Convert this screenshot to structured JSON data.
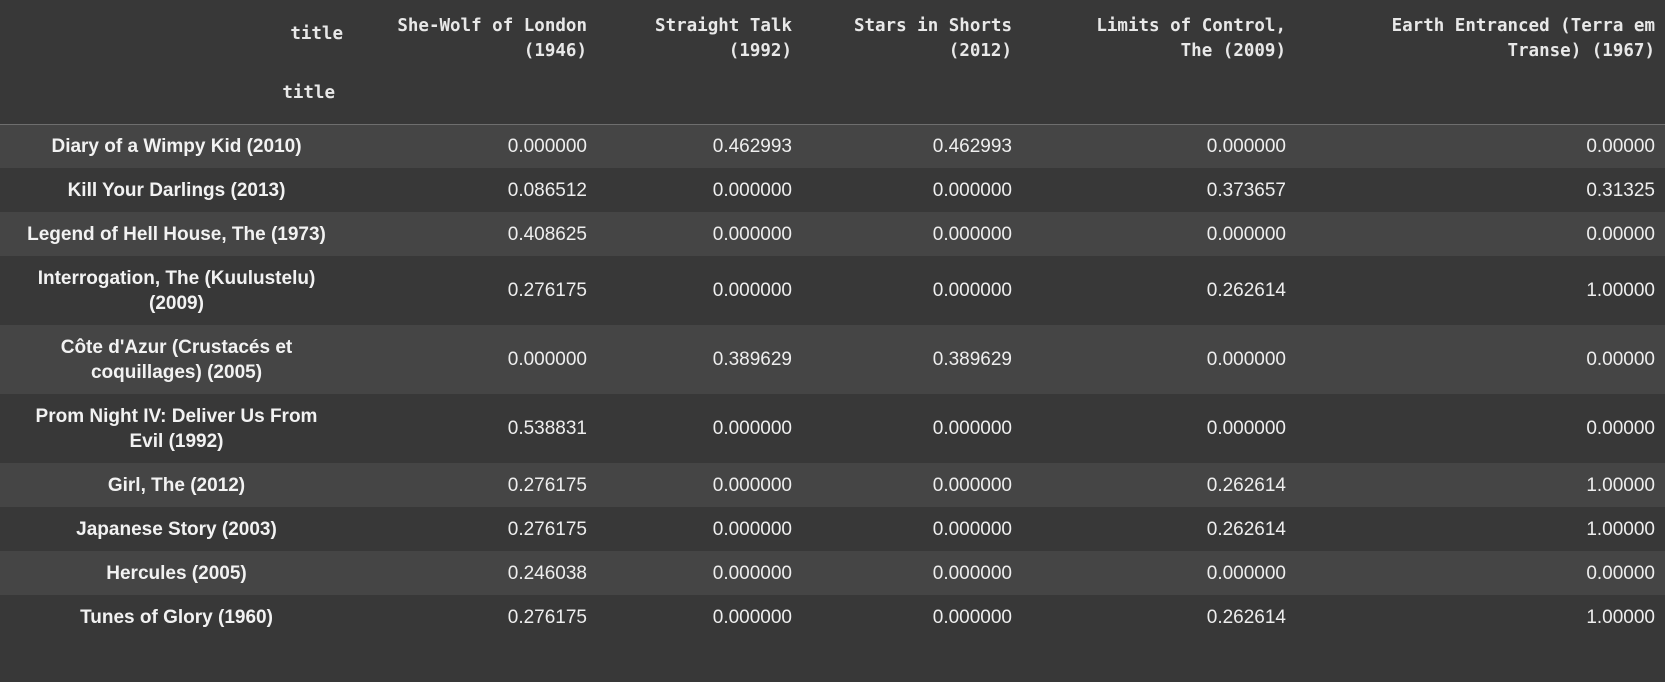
{
  "table": {
    "columns_header_label": "title",
    "index_name": "title",
    "columns": [
      "She-Wolf of London (1946)",
      "Straight Talk (1992)",
      "Stars in Shorts (2012)",
      "Limits of Control, The (2009)",
      "Earth Entranced (Terra em Transe) (1967)"
    ],
    "header_lines": [
      [
        "She-Wolf of London",
        "(1946)"
      ],
      [
        "Straight Talk",
        "(1992)"
      ],
      [
        "Stars in Shorts",
        "(2012)"
      ],
      [
        "Limits of Control,",
        "The (2009)"
      ],
      [
        "Earth Entranced (Terra em",
        "Transe) (1967)"
      ]
    ],
    "rows": [
      {
        "title_lines": [
          "Diary of a Wimpy Kid (2010)"
        ],
        "values": [
          "0.000000",
          "0.462993",
          "0.462993",
          "0.000000",
          "0.00000"
        ]
      },
      {
        "title_lines": [
          "Kill Your Darlings (2013)"
        ],
        "values": [
          "0.086512",
          "0.000000",
          "0.000000",
          "0.373657",
          "0.31325"
        ]
      },
      {
        "title_lines": [
          "Legend of Hell House, The (1973)"
        ],
        "values": [
          "0.408625",
          "0.000000",
          "0.000000",
          "0.000000",
          "0.00000"
        ]
      },
      {
        "title_lines": [
          "Interrogation, The (Kuulustelu)",
          "(2009)"
        ],
        "values": [
          "0.276175",
          "0.000000",
          "0.000000",
          "0.262614",
          "1.00000"
        ]
      },
      {
        "title_lines": [
          "Côte d'Azur (Crustacés et",
          "coquillages) (2005)"
        ],
        "values": [
          "0.000000",
          "0.389629",
          "0.389629",
          "0.000000",
          "0.00000"
        ]
      },
      {
        "title_lines": [
          "Prom Night IV: Deliver Us From",
          "Evil (1992)"
        ],
        "values": [
          "0.538831",
          "0.000000",
          "0.000000",
          "0.000000",
          "0.00000"
        ]
      },
      {
        "title_lines": [
          "Girl, The (2012)"
        ],
        "values": [
          "0.276175",
          "0.000000",
          "0.000000",
          "0.262614",
          "1.00000"
        ]
      },
      {
        "title_lines": [
          "Japanese Story (2003)"
        ],
        "values": [
          "0.276175",
          "0.000000",
          "0.000000",
          "0.262614",
          "1.00000"
        ]
      },
      {
        "title_lines": [
          "Hercules (2005)"
        ],
        "values": [
          "0.246038",
          "0.000000",
          "0.000000",
          "0.000000",
          "0.00000"
        ]
      },
      {
        "title_lines": [
          "Tunes of Glory (1960)"
        ],
        "values": [
          "0.276175",
          "0.000000",
          "0.000000",
          "0.262614",
          "1.00000"
        ]
      }
    ]
  },
  "colors": {
    "background": "#383838",
    "row_stripe": "#454545",
    "text": "#eeeeee"
  }
}
